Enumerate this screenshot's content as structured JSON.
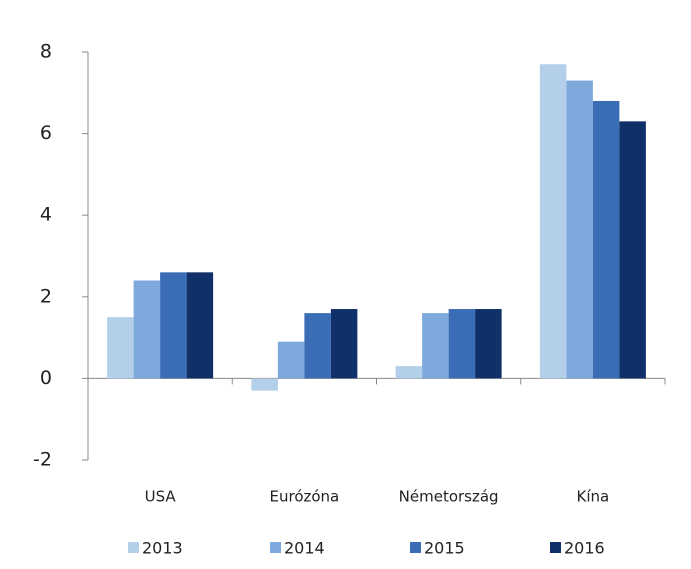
{
  "chart_data": {
    "type": "bar",
    "categories": [
      "USA",
      "Eurózóna",
      "Németország",
      "Kína"
    ],
    "series": [
      {
        "name": "2013",
        "color": "#b4cfea",
        "values": [
          1.5,
          -0.3,
          0.3,
          7.7
        ]
      },
      {
        "name": "2014",
        "color": "#7ea9dc",
        "values": [
          2.4,
          0.9,
          1.6,
          7.3
        ]
      },
      {
        "name": "2015",
        "color": "#3a6db6",
        "values": [
          2.6,
          1.6,
          1.7,
          6.8
        ]
      },
      {
        "name": "2016",
        "color": "#0f3068",
        "values": [
          2.6,
          1.7,
          1.7,
          6.3
        ]
      }
    ],
    "ylim": [
      -2,
      8
    ],
    "yticks": [
      -2,
      0,
      2,
      4,
      6,
      8
    ],
    "grid": false,
    "legend": "bottom"
  }
}
